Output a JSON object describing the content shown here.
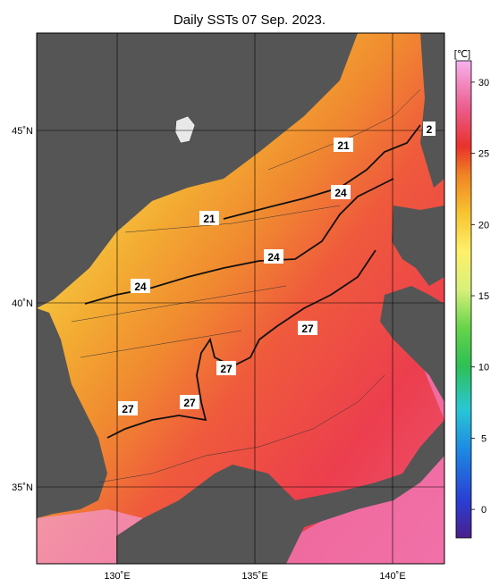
{
  "title": "Daily SSTs 07 Sep. 2023.",
  "lat_labels": [
    {
      "text": "45˚N",
      "lat": 45
    },
    {
      "text": "40˚N",
      "lat": 40
    },
    {
      "text": "35˚N",
      "lat": 35
    }
  ],
  "lon_labels": [
    {
      "text": "130˚E",
      "lon": 130
    },
    {
      "text": "135˚E",
      "lon": 135
    },
    {
      "text": "140˚E",
      "lon": 140
    }
  ],
  "isotherm_labels": [
    {
      "text": "21",
      "lon": 138.0,
      "lat": 44.5
    },
    {
      "text": "21",
      "lon": 132.9,
      "lat": 42.4
    },
    {
      "text": "24",
      "lon": 138.0,
      "lat": 43.1
    },
    {
      "text": "24",
      "lon": 135.5,
      "lat": 41.3
    },
    {
      "text": "24",
      "lon": 130.3,
      "lat": 40.4
    },
    {
      "text": "27",
      "lon": 136.8,
      "lat": 39.2
    },
    {
      "text": "27",
      "lon": 134.0,
      "lat": 38.2
    },
    {
      "text": "27",
      "lon": 132.8,
      "lat": 37.2
    },
    {
      "text": "27",
      "lon": 129.7,
      "lat": 37.0
    },
    {
      "text": "2",
      "lon": 141.4,
      "lat": 45.0
    }
  ],
  "colorbar": {
    "unit": "[℃]",
    "ticks": [
      {
        "text": "30",
        "value": 30
      },
      {
        "text": "25",
        "value": 25
      },
      {
        "text": "20",
        "value": 20
      },
      {
        "text": "15",
        "value": 15
      },
      {
        "text": "10",
        "value": 10
      },
      {
        "text": "5",
        "value": 5
      },
      {
        "text": "0",
        "value": 0
      }
    ],
    "min": -2,
    "max": 31.5
  },
  "colors": {
    "land": "#555555",
    "cold": "#f5ef7a",
    "mid": "#f4a52a",
    "warm": "#ef5a3c",
    "hot": "#ec3e4e",
    "pink": "#f39ad6"
  }
}
